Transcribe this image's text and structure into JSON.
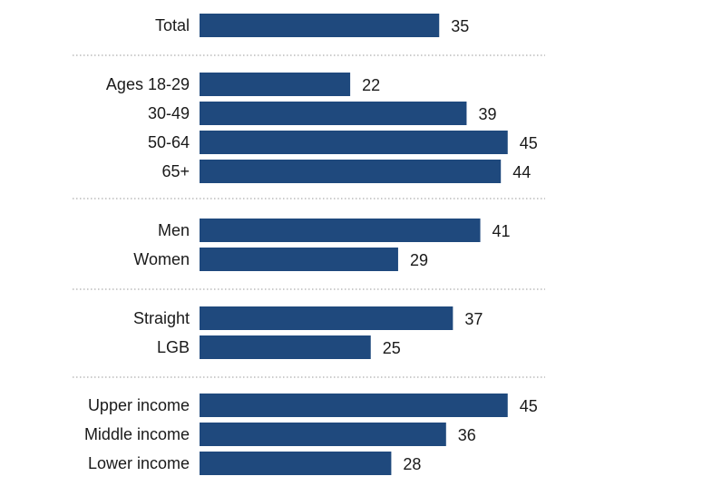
{
  "chart_data": {
    "type": "bar",
    "orientation": "horizontal",
    "title": "",
    "xlabel": "",
    "ylabel": "",
    "xlim": [
      0,
      45
    ],
    "grid": false,
    "legend": "none",
    "bar_color": "#1f497d",
    "separator_color": "#9a9a9a",
    "groups": [
      {
        "categories": [
          "Total"
        ],
        "values": [
          35
        ]
      },
      {
        "categories": [
          "Ages 18-29",
          "30-49",
          "50-64",
          "65+"
        ],
        "values": [
          22,
          39,
          45,
          44
        ]
      },
      {
        "categories": [
          "Men",
          "Women"
        ],
        "values": [
          41,
          29
        ]
      },
      {
        "categories": [
          "Straight",
          "LGB"
        ],
        "values": [
          37,
          25
        ]
      },
      {
        "categories": [
          "Upper income",
          "Middle income",
          "Lower income"
        ],
        "values": [
          45,
          36,
          28
        ]
      }
    ]
  }
}
